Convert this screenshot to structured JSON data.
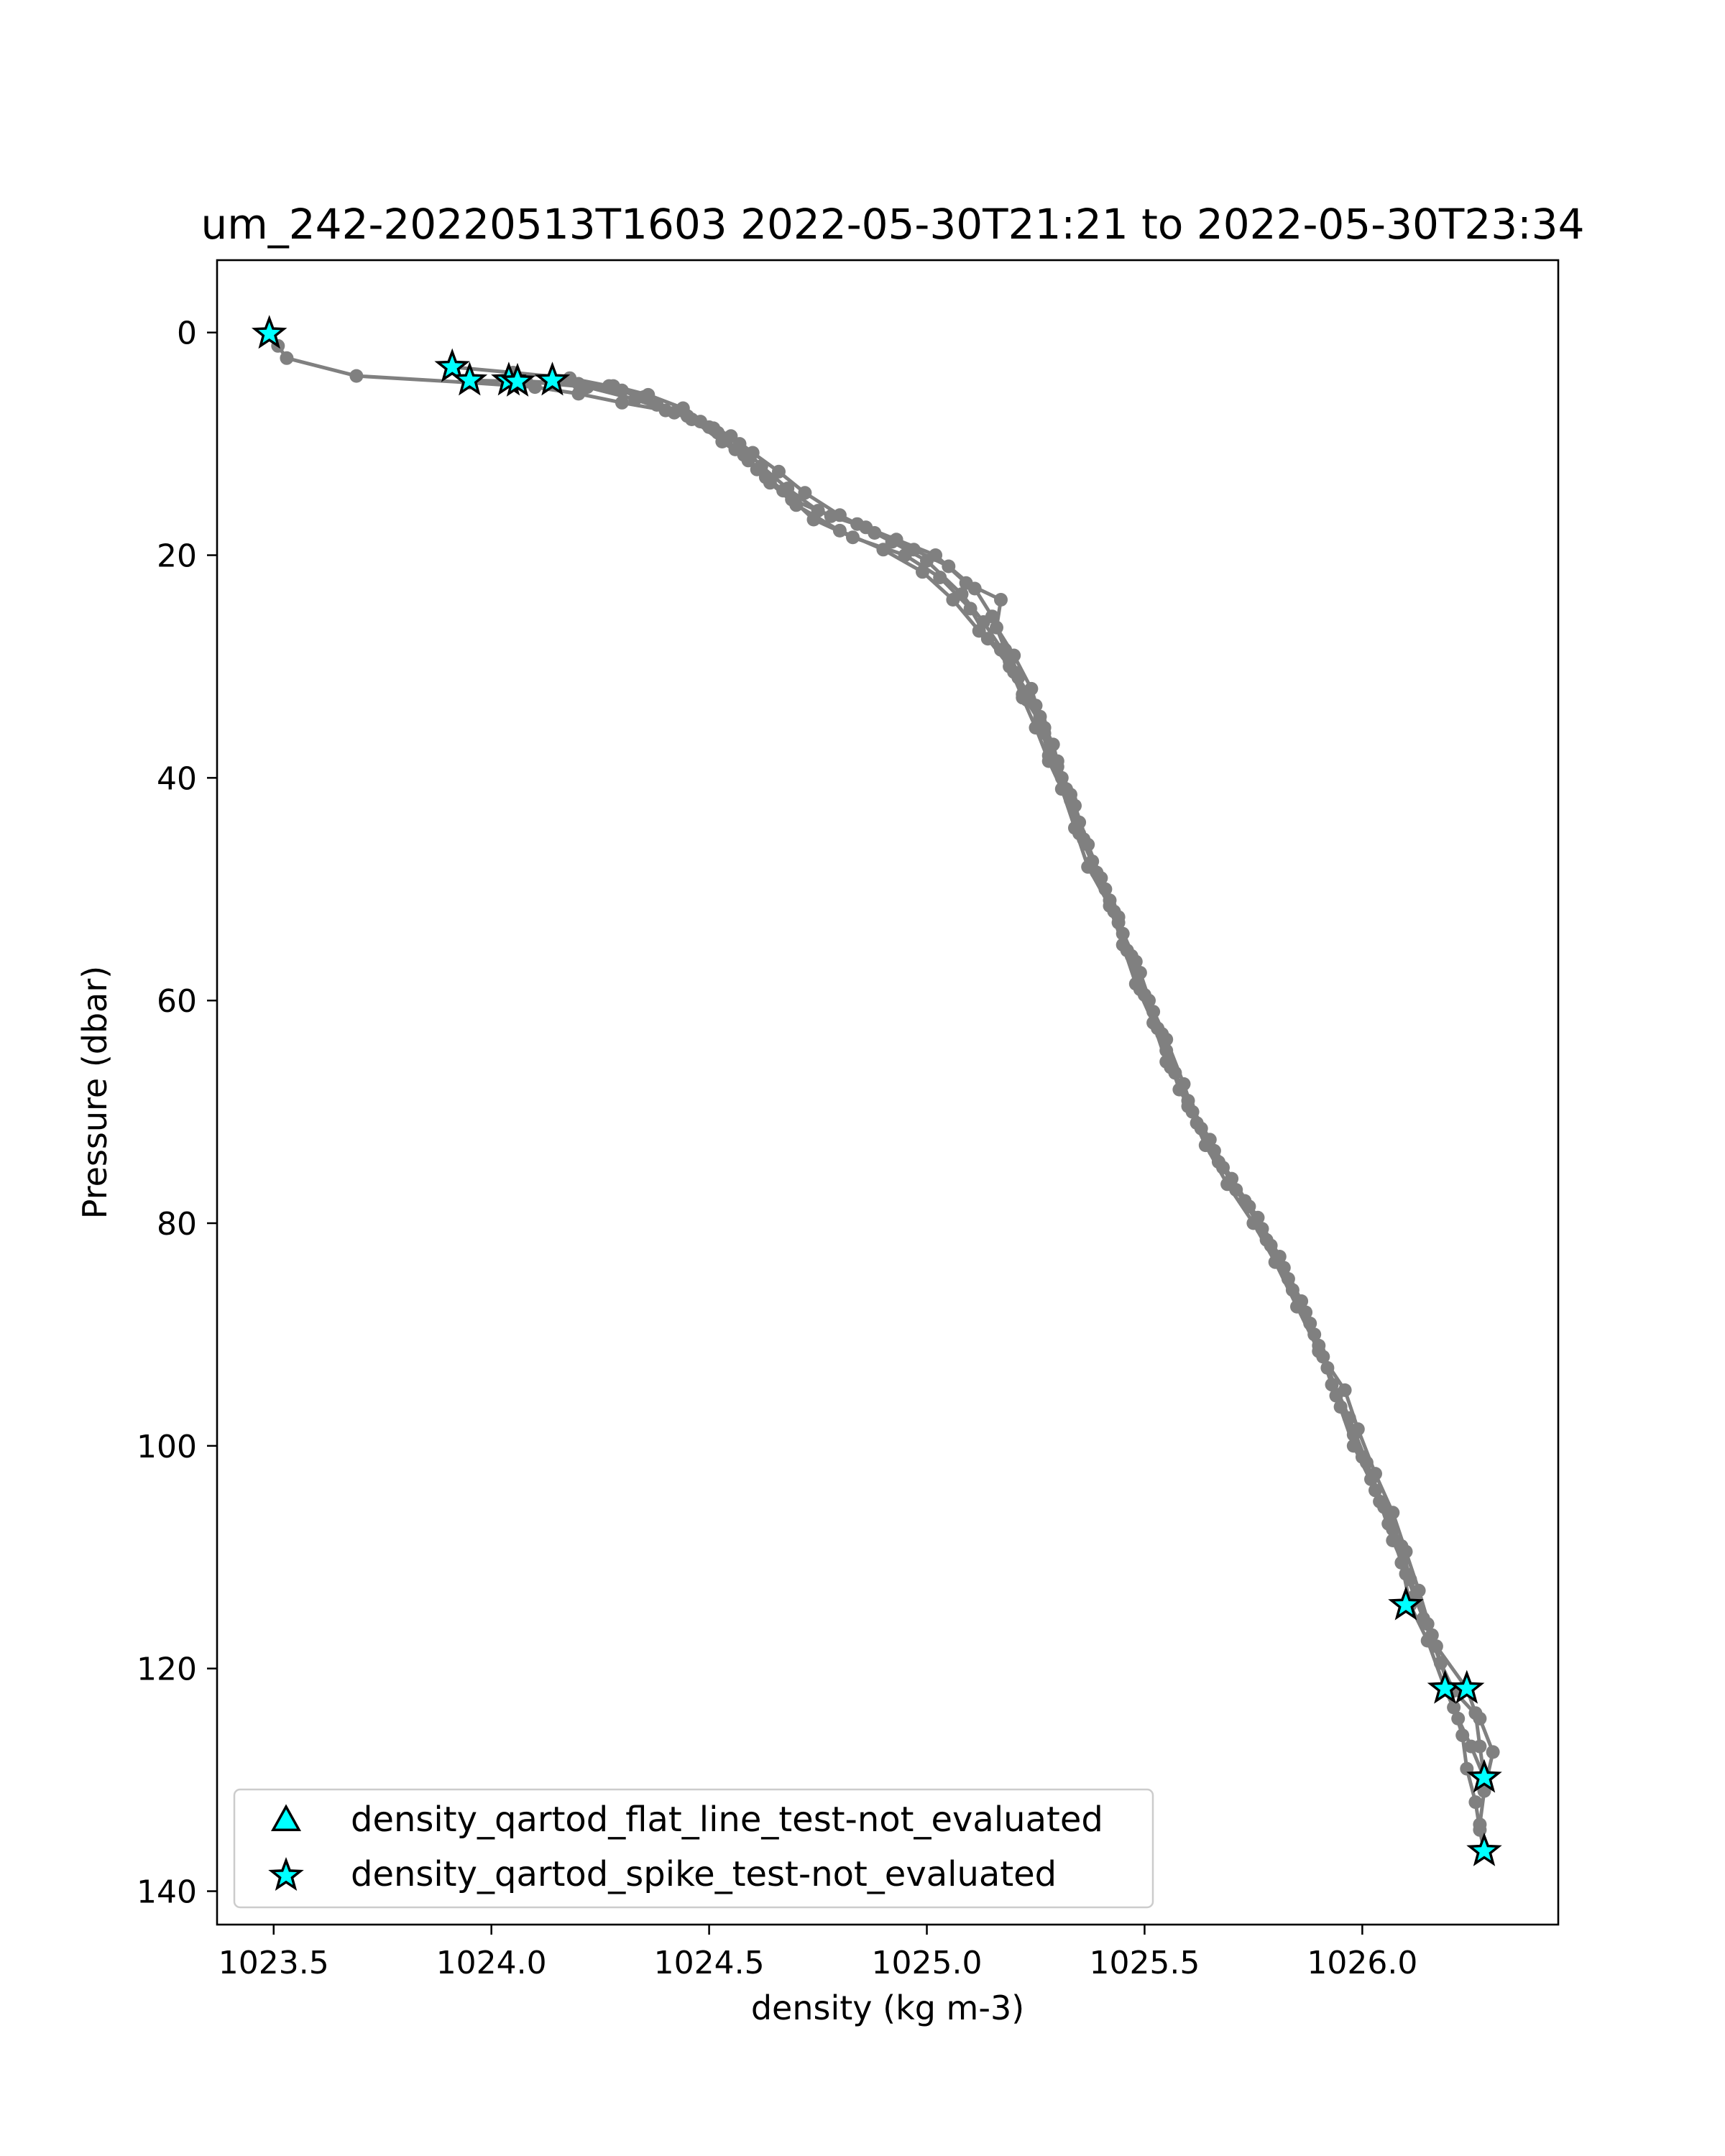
{
  "chart_data": {
    "type": "line",
    "title": "um_242-20220513T1603 2022-05-30T21:21 to 2022-05-30T23:34",
    "xlabel": "density (kg m-3)",
    "ylabel": "Pressure (dbar)",
    "xlim": [
      1023.37,
      1026.45
    ],
    "ylim": [
      143,
      -6.5
    ],
    "y_inverted": true,
    "xticks": [
      1023.5,
      1024.0,
      1024.5,
      1025.0,
      1025.5,
      1026.0
    ],
    "xtick_labels": [
      "1023.5",
      "1024.0",
      "1024.5",
      "1025.0",
      "1025.5",
      "1026.0"
    ],
    "yticks": [
      0,
      20,
      40,
      60,
      80,
      100,
      120,
      140
    ],
    "ytick_labels": [
      "0",
      "20",
      "40",
      "60",
      "80",
      "100",
      "120",
      "140"
    ],
    "grid": false,
    "legend_position": "lower-left",
    "colors": {
      "profile": "#808080",
      "marker_fill": "#00ffff",
      "marker_edge": "#000000"
    },
    "series": [
      {
        "style": "profile",
        "points": [
          [
            1023.49,
            0.2
          ],
          [
            1023.51,
            1.2
          ],
          [
            1023.53,
            2.3
          ],
          [
            1023.69,
            3.9
          ],
          [
            1023.95,
            4.5
          ],
          [
            1024.1,
            4.9
          ],
          [
            1024.2,
            5.5
          ],
          [
            1024.3,
            6.3
          ],
          [
            1024.4,
            7.0
          ],
          [
            1024.48,
            8.0
          ],
          [
            1024.55,
            9.3
          ],
          [
            1024.6,
            10.8
          ],
          [
            1024.66,
            12.5
          ],
          [
            1024.72,
            14.4
          ],
          [
            1024.8,
            16.4
          ],
          [
            1024.88,
            18.0
          ],
          [
            1024.97,
            19.5
          ],
          [
            1025.05,
            21.0
          ],
          [
            1025.11,
            23.0
          ],
          [
            1025.15,
            25.5
          ],
          [
            1025.18,
            28.5
          ],
          [
            1025.21,
            31.0
          ],
          [
            1025.25,
            33.5
          ],
          [
            1025.27,
            36.0
          ],
          [
            1025.3,
            38.5
          ],
          [
            1025.33,
            41.5
          ],
          [
            1025.35,
            44.0
          ],
          [
            1025.38,
            47.5
          ],
          [
            1025.42,
            51.0
          ],
          [
            1025.45,
            54.0
          ],
          [
            1025.49,
            57.5
          ],
          [
            1025.52,
            61.0
          ],
          [
            1025.55,
            64.5
          ],
          [
            1025.58,
            68.0
          ],
          [
            1025.63,
            71.5
          ],
          [
            1025.68,
            75.0
          ],
          [
            1025.74,
            78.5
          ],
          [
            1025.79,
            82.0
          ],
          [
            1025.84,
            86.0
          ],
          [
            1025.89,
            90.0
          ],
          [
            1025.93,
            94.5
          ],
          [
            1025.98,
            99.0
          ],
          [
            1026.02,
            103.0
          ],
          [
            1026.06,
            107.0
          ],
          [
            1026.09,
            110.5
          ],
          [
            1026.11,
            114.3
          ],
          [
            1026.15,
            117.5
          ],
          [
            1026.19,
            121.8
          ],
          [
            1026.22,
            124.5
          ],
          [
            1026.25,
            127.0
          ],
          [
            1026.28,
            129.8
          ]
        ]
      },
      {
        "style": "profile",
        "points": [
          [
            1023.91,
            3.1
          ],
          [
            1024.05,
            3.6
          ],
          [
            1024.18,
            4.1
          ],
          [
            1024.27,
            4.8
          ],
          [
            1024.35,
            5.8
          ],
          [
            1024.45,
            7.5
          ],
          [
            1024.52,
            9.0
          ],
          [
            1024.58,
            11.0
          ],
          [
            1024.63,
            13.0
          ],
          [
            1024.69,
            15.0
          ],
          [
            1024.78,
            16.5
          ],
          [
            1024.86,
            17.5
          ],
          [
            1024.93,
            18.6
          ],
          [
            1025.02,
            20.0
          ],
          [
            1025.09,
            22.5
          ],
          [
            1025.17,
            24.0
          ],
          [
            1025.16,
            26.5
          ],
          [
            1025.2,
            29.0
          ],
          [
            1025.24,
            32.0
          ],
          [
            1025.26,
            34.5
          ],
          [
            1025.29,
            37.0
          ],
          [
            1025.31,
            40.0
          ],
          [
            1025.34,
            42.5
          ],
          [
            1025.37,
            46.0
          ],
          [
            1025.4,
            49.0
          ],
          [
            1025.44,
            52.5
          ],
          [
            1025.47,
            56.0
          ],
          [
            1025.5,
            59.5
          ],
          [
            1025.54,
            63.0
          ],
          [
            1025.57,
            66.5
          ],
          [
            1025.61,
            70.0
          ],
          [
            1025.66,
            73.5
          ],
          [
            1025.71,
            77.0
          ],
          [
            1025.77,
            80.5
          ],
          [
            1025.82,
            84.0
          ],
          [
            1025.87,
            88.0
          ],
          [
            1025.91,
            92.0
          ],
          [
            1025.95,
            96.5
          ],
          [
            1026.0,
            101.0
          ],
          [
            1026.04,
            105.0
          ],
          [
            1026.07,
            108.5
          ],
          [
            1026.11,
            112.0
          ],
          [
            1026.15,
            116.0
          ],
          [
            1026.18,
            119.5
          ],
          [
            1026.21,
            122.0
          ],
          [
            1026.27,
            124.5
          ],
          [
            1026.3,
            127.5
          ],
          [
            1026.28,
            131.0
          ],
          [
            1026.27,
            134.0
          ],
          [
            1026.28,
            136.4
          ]
        ]
      },
      {
        "style": "profile",
        "points": [
          [
            1023.95,
            4.3
          ],
          [
            1024.08,
            4.4
          ],
          [
            1024.22,
            4.9
          ],
          [
            1024.33,
            6.0
          ],
          [
            1024.42,
            7.2
          ],
          [
            1024.5,
            8.5
          ],
          [
            1024.57,
            10.0
          ],
          [
            1024.62,
            12.0
          ],
          [
            1024.68,
            14.0
          ],
          [
            1024.75,
            16.0
          ],
          [
            1024.84,
            17.2
          ],
          [
            1024.92,
            18.8
          ],
          [
            1025.0,
            20.5
          ],
          [
            1025.08,
            23.5
          ],
          [
            1025.13,
            26.0
          ],
          [
            1025.19,
            29.5
          ],
          [
            1025.22,
            32.5
          ],
          [
            1025.26,
            35.0
          ],
          [
            1025.28,
            38.0
          ],
          [
            1025.32,
            41.0
          ],
          [
            1025.35,
            45.0
          ],
          [
            1025.39,
            48.5
          ],
          [
            1025.43,
            52.0
          ],
          [
            1025.46,
            55.5
          ],
          [
            1025.49,
            59.0
          ],
          [
            1025.53,
            62.5
          ],
          [
            1025.56,
            66.0
          ],
          [
            1025.6,
            69.5
          ],
          [
            1025.64,
            73.0
          ],
          [
            1025.69,
            76.5
          ],
          [
            1025.75,
            80.0
          ],
          [
            1025.8,
            83.5
          ],
          [
            1025.85,
            87.5
          ],
          [
            1025.9,
            91.5
          ],
          [
            1025.96,
            95.0
          ],
          [
            1025.99,
            98.5
          ],
          [
            1026.03,
            102.5
          ],
          [
            1026.07,
            106.0
          ],
          [
            1026.1,
            109.5
          ],
          [
            1026.13,
            113.0
          ],
          [
            1026.16,
            117.0
          ],
          [
            1026.2,
            121.8
          ],
          [
            1026.21,
            123.5
          ],
          [
            1026.23,
            126.0
          ],
          [
            1026.24,
            129.0
          ],
          [
            1026.26,
            132.0
          ],
          [
            1026.27,
            134.5
          ],
          [
            1026.28,
            136.5
          ]
        ]
      },
      {
        "style": "profile",
        "points": [
          [
            1024.04,
            4.3
          ],
          [
            1024.2,
            4.6
          ],
          [
            1024.3,
            5.2
          ],
          [
            1024.38,
            6.5
          ],
          [
            1024.46,
            7.8
          ],
          [
            1024.53,
            9.8
          ],
          [
            1024.59,
            11.5
          ],
          [
            1024.64,
            13.5
          ],
          [
            1024.7,
            15.5
          ],
          [
            1024.8,
            17.8
          ],
          [
            1024.9,
            19.5
          ],
          [
            1024.99,
            21.5
          ],
          [
            1025.06,
            24.0
          ],
          [
            1025.12,
            26.8
          ],
          [
            1025.17,
            28.5
          ],
          [
            1025.2,
            30.5
          ],
          [
            1025.23,
            33.0
          ],
          [
            1025.27,
            35.5
          ],
          [
            1025.3,
            39.0
          ],
          [
            1025.33,
            42.0
          ],
          [
            1025.36,
            45.5
          ],
          [
            1025.41,
            50.0
          ],
          [
            1025.44,
            53.0
          ],
          [
            1025.48,
            56.5
          ],
          [
            1025.51,
            60.0
          ],
          [
            1025.55,
            63.5
          ],
          [
            1025.59,
            67.5
          ],
          [
            1025.62,
            71.0
          ],
          [
            1025.67,
            74.5
          ],
          [
            1025.73,
            78.0
          ],
          [
            1025.78,
            81.5
          ],
          [
            1025.83,
            85.0
          ],
          [
            1025.88,
            89.0
          ],
          [
            1025.92,
            93.0
          ],
          [
            1025.97,
            97.5
          ],
          [
            1026.01,
            101.5
          ],
          [
            1026.05,
            105.5
          ],
          [
            1026.09,
            109.0
          ],
          [
            1026.12,
            113.5
          ],
          [
            1026.17,
            118.0
          ],
          [
            1026.24,
            121.8
          ],
          [
            1026.26,
            124.0
          ],
          [
            1026.27,
            127.0
          ],
          [
            1026.28,
            129.8
          ]
        ]
      },
      {
        "style": "profile",
        "points": [
          [
            1024.14,
            4.3
          ],
          [
            1024.28,
            4.8
          ],
          [
            1024.36,
            5.6
          ],
          [
            1024.44,
            6.8
          ],
          [
            1024.51,
            8.6
          ],
          [
            1024.56,
            10.5
          ],
          [
            1024.61,
            12.3
          ],
          [
            1024.67,
            14.2
          ],
          [
            1024.74,
            16.8
          ],
          [
            1024.83,
            18.4
          ],
          [
            1024.95,
            20.0
          ],
          [
            1025.03,
            22.0
          ],
          [
            1025.1,
            24.8
          ],
          [
            1025.14,
            27.5
          ],
          [
            1025.19,
            30.0
          ],
          [
            1025.22,
            32.8
          ],
          [
            1025.25,
            35.5
          ],
          [
            1025.28,
            38.5
          ],
          [
            1025.31,
            41.0
          ],
          [
            1025.34,
            44.5
          ],
          [
            1025.37,
            48.0
          ],
          [
            1025.42,
            51.5
          ],
          [
            1025.45,
            55.0
          ],
          [
            1025.48,
            58.5
          ],
          [
            1025.52,
            62.0
          ],
          [
            1025.55,
            65.5
          ],
          [
            1025.6,
            69.0
          ],
          [
            1025.65,
            72.5
          ],
          [
            1025.7,
            76.0
          ],
          [
            1025.76,
            79.5
          ],
          [
            1025.81,
            83.0
          ],
          [
            1025.86,
            87.0
          ],
          [
            1025.9,
            91.0
          ],
          [
            1025.94,
            95.5
          ],
          [
            1025.98,
            100.0
          ],
          [
            1026.03,
            104.0
          ],
          [
            1026.07,
            107.5
          ],
          [
            1026.1,
            111.5
          ],
          [
            1026.14,
            115.5
          ],
          [
            1026.18,
            119.5
          ],
          [
            1026.2,
            121.8
          ]
        ]
      },
      {
        "style": "spike_test_not_evaluated",
        "marker": "star",
        "points": [
          [
            1023.49,
            0.1
          ],
          [
            1023.91,
            3.1
          ],
          [
            1023.95,
            4.3
          ],
          [
            1024.04,
            4.3
          ],
          [
            1024.06,
            4.4
          ],
          [
            1024.14,
            4.3
          ],
          [
            1026.1,
            114.3
          ],
          [
            1026.19,
            121.8
          ],
          [
            1026.24,
            121.8
          ],
          [
            1026.28,
            129.8
          ],
          [
            1026.28,
            136.4
          ]
        ]
      }
    ],
    "legend": [
      {
        "marker": "triangle",
        "label": "density_qartod_flat_line_test-not_evaluated"
      },
      {
        "marker": "star",
        "label": "density_qartod_spike_test-not_evaluated"
      }
    ]
  }
}
